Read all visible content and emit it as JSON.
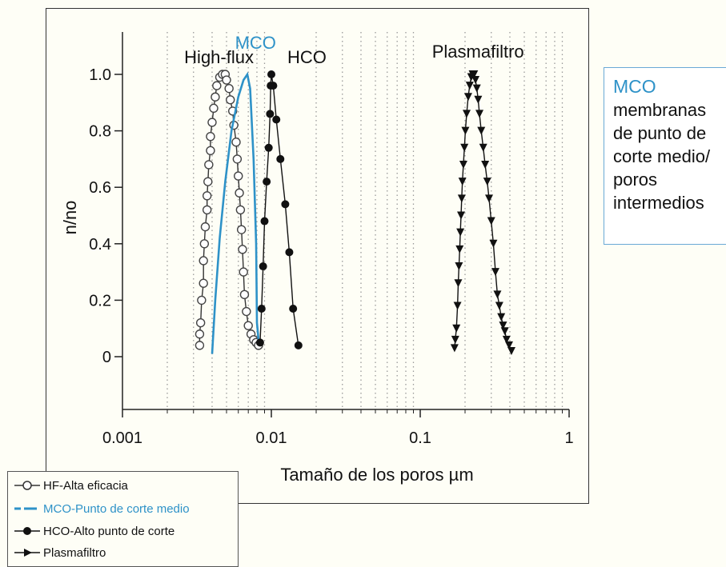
{
  "chart_data": {
    "type": "line",
    "xlabel": "Tamaño de los poros µm",
    "ylabel": "n/no",
    "x_scale": "log",
    "xlim": [
      0.001,
      1
    ],
    "ylim": [
      -0.18,
      1.14
    ],
    "x_tick_labels": [
      "0.001",
      "0.01",
      "0.1",
      "1"
    ],
    "y_tick_labels": [
      "0",
      "0.2",
      "0.4",
      "0.6",
      "0.8",
      "1.0"
    ],
    "y_ticks": [
      0,
      0.2,
      0.4,
      0.6,
      0.8,
      1.0
    ],
    "x_ticks": [
      0.001,
      0.01,
      0.1,
      1
    ],
    "grid": "vertical dotted minor",
    "annotations": [
      {
        "text": "High-flux",
        "color": "#111111",
        "x": 0.0026,
        "y": 1.04
      },
      {
        "text": "MCO",
        "color": "#2e92c8",
        "x": 0.0057,
        "y": 1.09
      },
      {
        "text": "HCO",
        "color": "#111111",
        "x": 0.0128,
        "y": 1.04
      },
      {
        "text": "Plasmafiltro",
        "color": "#111111",
        "x": 0.12,
        "y": 1.06
      }
    ],
    "series": [
      {
        "name": "HF-Alta eficacia",
        "marker": "open-circle",
        "color": "#333333",
        "points": [
          [
            0.0033,
            0.04
          ],
          [
            0.0033,
            0.08
          ],
          [
            0.00335,
            0.12
          ],
          [
            0.0034,
            0.2
          ],
          [
            0.0035,
            0.26
          ],
          [
            0.0035,
            0.34
          ],
          [
            0.00355,
            0.4
          ],
          [
            0.0036,
            0.46
          ],
          [
            0.0037,
            0.52
          ],
          [
            0.0037,
            0.57
          ],
          [
            0.00375,
            0.62
          ],
          [
            0.0038,
            0.68
          ],
          [
            0.0039,
            0.73
          ],
          [
            0.0039,
            0.78
          ],
          [
            0.004,
            0.83
          ],
          [
            0.0041,
            0.88
          ],
          [
            0.0042,
            0.92
          ],
          [
            0.0043,
            0.96
          ],
          [
            0.0045,
            0.99
          ],
          [
            0.0047,
            1.0
          ],
          [
            0.0049,
            1.0
          ],
          [
            0.005,
            0.98
          ],
          [
            0.0052,
            0.95
          ],
          [
            0.0053,
            0.91
          ],
          [
            0.0055,
            0.87
          ],
          [
            0.0056,
            0.82
          ],
          [
            0.0058,
            0.76
          ],
          [
            0.0059,
            0.7
          ],
          [
            0.006,
            0.64
          ],
          [
            0.0061,
            0.58
          ],
          [
            0.0062,
            0.52
          ],
          [
            0.0063,
            0.45
          ],
          [
            0.0064,
            0.38
          ],
          [
            0.0065,
            0.3
          ],
          [
            0.0066,
            0.22
          ],
          [
            0.0068,
            0.16
          ],
          [
            0.007,
            0.11
          ],
          [
            0.0073,
            0.08
          ],
          [
            0.0076,
            0.06
          ],
          [
            0.0079,
            0.05
          ],
          [
            0.0082,
            0.04
          ]
        ]
      },
      {
        "name": "MCO-Punto de corte medio",
        "marker": "none",
        "color": "#2e92c8",
        "points": [
          [
            0.004,
            0.01
          ],
          [
            0.0042,
            0.2
          ],
          [
            0.0045,
            0.42
          ],
          [
            0.0049,
            0.62
          ],
          [
            0.0054,
            0.8
          ],
          [
            0.006,
            0.92
          ],
          [
            0.0065,
            0.98
          ],
          [
            0.0069,
            1.0
          ],
          [
            0.0072,
            0.95
          ],
          [
            0.0076,
            0.7
          ],
          [
            0.0079,
            0.4
          ],
          [
            0.008,
            0.12
          ],
          [
            0.0082,
            0.06
          ],
          [
            0.0085,
            0.04
          ]
        ]
      },
      {
        "name": "HCO-Alto punto de corte",
        "marker": "filled-circle",
        "color": "#111111",
        "points": [
          [
            0.0084,
            0.05
          ],
          [
            0.0086,
            0.17
          ],
          [
            0.0088,
            0.32
          ],
          [
            0.009,
            0.48
          ],
          [
            0.0093,
            0.62
          ],
          [
            0.0096,
            0.74
          ],
          [
            0.0098,
            0.86
          ],
          [
            0.0099,
            0.96
          ],
          [
            0.01,
            1.0
          ],
          [
            0.0103,
            0.96
          ],
          [
            0.0108,
            0.84
          ],
          [
            0.0115,
            0.7
          ],
          [
            0.0124,
            0.54
          ],
          [
            0.0132,
            0.37
          ],
          [
            0.014,
            0.17
          ],
          [
            0.0152,
            0.04
          ]
        ]
      },
      {
        "name": "Plasmafiltro",
        "marker": "filled-triangle-down",
        "color": "#111111",
        "points": [
          [
            0.17,
            0.03
          ],
          [
            0.172,
            0.06
          ],
          [
            0.175,
            0.1
          ],
          [
            0.178,
            0.18
          ],
          [
            0.18,
            0.26
          ],
          [
            0.182,
            0.32
          ],
          [
            0.184,
            0.38
          ],
          [
            0.186,
            0.44
          ],
          [
            0.188,
            0.5
          ],
          [
            0.19,
            0.56
          ],
          [
            0.192,
            0.62
          ],
          [
            0.195,
            0.68
          ],
          [
            0.198,
            0.74
          ],
          [
            0.201,
            0.8
          ],
          [
            0.205,
            0.86
          ],
          [
            0.21,
            0.92
          ],
          [
            0.215,
            0.96
          ],
          [
            0.22,
            0.99
          ],
          [
            0.225,
            1.0
          ],
          [
            0.23,
            1.0
          ],
          [
            0.235,
            0.98
          ],
          [
            0.24,
            0.95
          ],
          [
            0.245,
            0.91
          ],
          [
            0.25,
            0.86
          ],
          [
            0.257,
            0.8
          ],
          [
            0.265,
            0.74
          ],
          [
            0.273,
            0.68
          ],
          [
            0.282,
            0.62
          ],
          [
            0.29,
            0.56
          ],
          [
            0.3,
            0.48
          ],
          [
            0.31,
            0.4
          ],
          [
            0.32,
            0.3
          ],
          [
            0.33,
            0.22
          ],
          [
            0.34,
            0.18
          ],
          [
            0.35,
            0.14
          ],
          [
            0.36,
            0.11
          ],
          [
            0.37,
            0.09
          ],
          [
            0.38,
            0.06
          ],
          [
            0.395,
            0.04
          ],
          [
            0.41,
            0.02
          ]
        ]
      }
    ]
  },
  "side_box": {
    "title": "MCO",
    "lines": [
      "membranas",
      "de punto de",
      "corte medio/",
      "poros",
      "intermedios"
    ]
  },
  "legend": {
    "items": [
      {
        "label": "HF-Alta eficacia",
        "color": "#111111"
      },
      {
        "label": "MCO-Punto de corte medio",
        "color": "#2e92c8"
      },
      {
        "label": "HCO-Alto punto de corte",
        "color": "#111111"
      },
      {
        "label": "Plasmafiltro",
        "color": "#111111"
      }
    ]
  }
}
